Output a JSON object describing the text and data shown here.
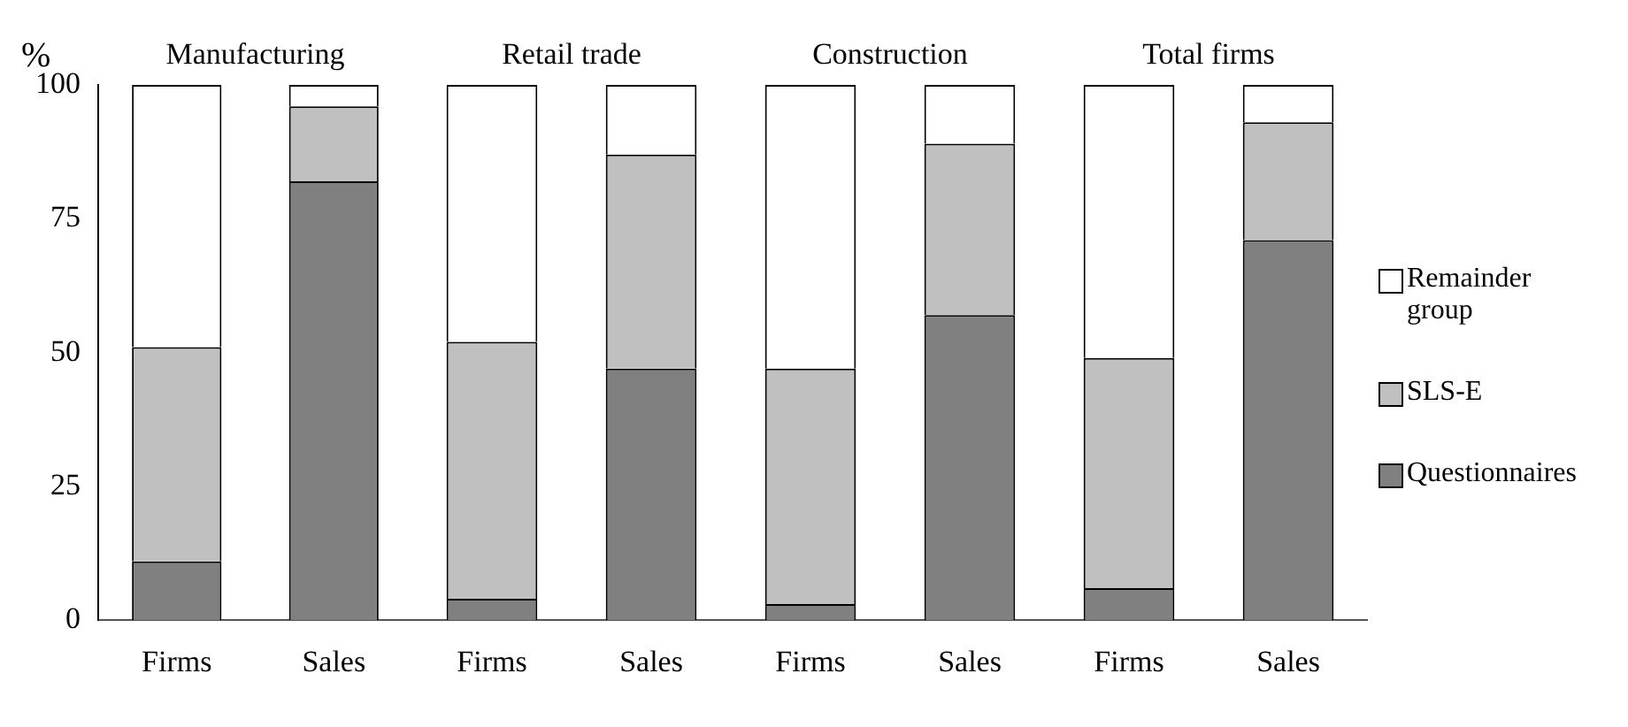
{
  "chart_data": [
    {
      "type": "bar",
      "title": "Manufacturing",
      "ylabel": "%",
      "categories": [
        "Firms",
        "Sales"
      ],
      "stacked": true,
      "ylim": [
        0,
        100
      ],
      "yticks": [
        0,
        25,
        50,
        75,
        100
      ],
      "grid": false,
      "series": [
        {
          "color": "#808080",
          "values": [
            11,
            82
          ]
        },
        {
          "color": "#c0c0c0",
          "values": [
            40,
            14
          ]
        },
        {
          "color": "#ffffff",
          "values": [
            49,
            4
          ]
        }
      ]
    },
    {
      "type": "bar",
      "title": "Retail trade",
      "categories": [
        "Firms",
        "Sales"
      ],
      "stacked": true,
      "ylim": [
        0,
        100
      ],
      "yticks": [
        0,
        25,
        50,
        75,
        100
      ],
      "grid": false,
      "tick_labels": "x",
      "series": [
        {
          "color": "#808080",
          "values": [
            4,
            47
          ]
        },
        {
          "color": "#c0c0c0",
          "values": [
            48,
            40
          ]
        },
        {
          "color": "#ffffff",
          "values": [
            48,
            13
          ]
        }
      ]
    },
    {
      "type": "bar",
      "title": "Construction",
      "categories": [
        "Firms",
        "Sales"
      ],
      "stacked": true,
      "ylim": [
        0,
        100
      ],
      "yticks": [
        0,
        25,
        50,
        75,
        100
      ],
      "grid": false,
      "tick_labels": "x",
      "series": [
        {
          "color": "#808080",
          "values": [
            3,
            57
          ]
        },
        {
          "color": "#c0c0c0",
          "values": [
            44,
            32
          ]
        },
        {
          "color": "#ffffff",
          "values": [
            53,
            11
          ]
        }
      ]
    },
    {
      "type": "bar",
      "title": "Total firms",
      "categories": [
        "Firms",
        "Sales"
      ],
      "stacked": true,
      "ylim": [
        0,
        100
      ],
      "yticks": [
        0,
        25,
        50,
        75,
        100
      ],
      "grid": false,
      "tick_labels": "x",
      "legend": "right",
      "series": [
        {
          "name": "Questionnaires",
          "color": "#808080",
          "values": [
            6,
            71
          ]
        },
        {
          "name": "SLS-E",
          "color": "#c0c0c0",
          "values": [
            43,
            22
          ]
        },
        {
          "name": "Remainder group",
          "color": "#ffffff",
          "values": [
            51,
            7
          ]
        }
      ]
    }
  ]
}
